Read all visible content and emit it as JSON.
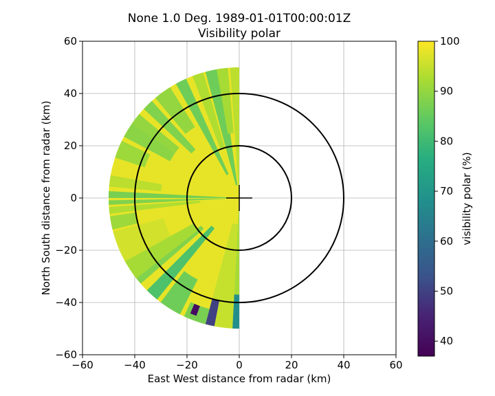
{
  "chart_data": {
    "type": "heatmap",
    "title_line1": "None 1.0 Deg. 1989-01-01T00:00:01Z",
    "title_line2": "Visibility polar",
    "xlabel": "East West distance from radar (km)",
    "ylabel": "North South distance from radar (km)",
    "xlim": [
      -60,
      60
    ],
    "ylim": [
      -60,
      60
    ],
    "x_ticks": [
      -60,
      -40,
      -20,
      0,
      20,
      40,
      60
    ],
    "y_ticks": [
      -60,
      -40,
      -20,
      0,
      20,
      40,
      60
    ],
    "x_tick_labels": [
      "−60",
      "−40",
      "−20",
      "0",
      "20",
      "40",
      "60"
    ],
    "y_tick_labels": [
      "−60",
      "−40",
      "−20",
      "0",
      "20",
      "40",
      "60"
    ],
    "grid": true,
    "range_rings_km": [
      20,
      40
    ],
    "max_range_km": 50,
    "azimuth_coverage_deg": [
      180,
      360
    ],
    "colorbar": {
      "label": "visibility polar (%)",
      "colormap": "viridis",
      "vmin": 37,
      "vmax": 100,
      "ticks": [
        40,
        50,
        60,
        70,
        80,
        90,
        100
      ],
      "tick_labels": [
        "40",
        "50",
        "60",
        "70",
        "80",
        "90",
        "100"
      ]
    },
    "sectors": [
      {
        "az_start": 180,
        "az_end": 183,
        "r_start": 0,
        "r_end": 37,
        "value": 92
      },
      {
        "az_start": 180,
        "az_end": 183,
        "r_start": 37,
        "r_end": 50,
        "value": 68
      },
      {
        "az_start": 183,
        "az_end": 195,
        "r_start": 10,
        "r_end": 50,
        "value": 95
      },
      {
        "az_start": 191,
        "az_end": 195,
        "r_start": 40,
        "r_end": 50,
        "value": 50
      },
      {
        "az_start": 195,
        "az_end": 205,
        "r_start": 44,
        "r_end": 50,
        "value": 87
      },
      {
        "az_start": 200,
        "az_end": 203,
        "r_start": 44,
        "r_end": 48,
        "value": 40
      },
      {
        "az_start": 207,
        "az_end": 217,
        "r_start": 35,
        "r_end": 50,
        "value": 86
      },
      {
        "az_start": 219,
        "az_end": 225,
        "r_start": 15,
        "r_end": 50,
        "value": 82
      },
      {
        "az_start": 229,
        "az_end": 234,
        "r_start": 18,
        "r_end": 50,
        "value": 88
      },
      {
        "az_start": 232,
        "az_end": 241,
        "r_start": 20,
        "r_end": 50,
        "value": 92
      },
      {
        "az_start": 241,
        "az_end": 255,
        "r_start": 30,
        "r_end": 50,
        "value": 96
      },
      {
        "az_start": 256,
        "az_end": 262,
        "r_start": 40,
        "r_end": 50,
        "value": 91
      },
      {
        "az_start": 263,
        "az_end": 266,
        "r_start": 15,
        "r_end": 50,
        "value": 93
      },
      {
        "az_start": 267,
        "az_end": 269,
        "r_start": 5,
        "r_end": 50,
        "value": 88
      },
      {
        "az_start": 270,
        "az_end": 273,
        "r_start": 0,
        "r_end": 50,
        "value": 87
      },
      {
        "az_start": 275,
        "az_end": 280,
        "r_start": 30,
        "r_end": 50,
        "value": 94
      },
      {
        "az_start": 288,
        "az_end": 296,
        "r_start": 38,
        "r_end": 50,
        "value": 91
      },
      {
        "az_start": 298,
        "az_end": 305,
        "r_start": 30,
        "r_end": 50,
        "value": 89
      },
      {
        "az_start": 305,
        "az_end": 310,
        "r_start": 30,
        "r_end": 50,
        "value": 90
      },
      {
        "az_start": 313,
        "az_end": 318,
        "r_start": 25,
        "r_end": 50,
        "value": 88
      },
      {
        "az_start": 320,
        "az_end": 328,
        "r_start": 32,
        "r_end": 50,
        "value": 90
      },
      {
        "az_start": 331,
        "az_end": 336,
        "r_start": 10,
        "r_end": 50,
        "value": 86
      },
      {
        "az_start": 339,
        "az_end": 344,
        "r_start": 20,
        "r_end": 50,
        "value": 93
      },
      {
        "az_start": 345,
        "az_end": 352,
        "r_start": 5,
        "r_end": 50,
        "value": 86
      },
      {
        "az_start": 350,
        "az_end": 355,
        "r_start": 25,
        "r_end": 50,
        "value": 92
      },
      {
        "az_start": 356,
        "az_end": 360,
        "r_start": 0,
        "r_end": 50,
        "value": 94
      }
    ],
    "background_value": 98
  }
}
